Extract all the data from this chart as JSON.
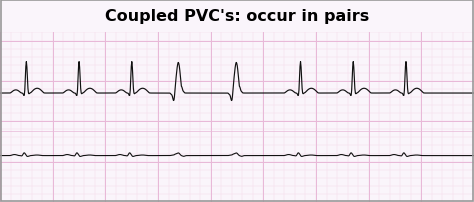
{
  "title": "Coupled PVC's: occur in pairs",
  "title_bg": "#a855c8",
  "title_color": "#000000",
  "ecg_bg": "#faf5fb",
  "grid_color_major": "#e8b8d8",
  "grid_color_minor": "#f5dcea",
  "ecg_line_color": "#111111",
  "border_color": "#999999",
  "fig_width": 4.74,
  "fig_height": 2.03,
  "dpi": 100
}
